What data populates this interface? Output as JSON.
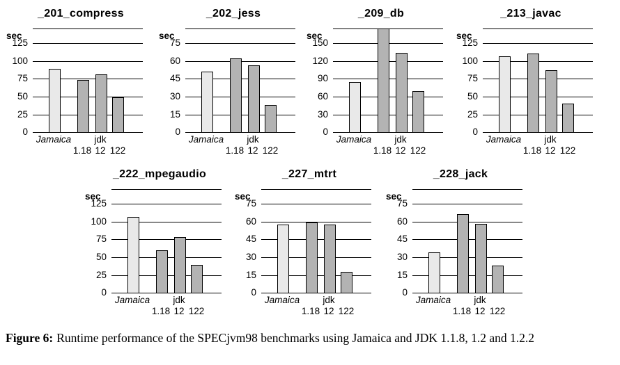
{
  "figure": {
    "caption_label": "Figure 6:",
    "caption_text": "Runtime performance of the SPECjvm98 benchmarks using Jamaica and JDK 1.1.8, 1.2 and 1.2.2"
  },
  "colors": {
    "background": "#ffffff",
    "jamaica_bar": "#e9e9e9",
    "jdk_bar": "#b3b3b3",
    "bar_border": "#000000",
    "grid_line": "#000000",
    "text": "#000000"
  },
  "x_axis": {
    "row1": [
      {
        "text": "Jamaica",
        "bar": 0,
        "italic": true
      },
      {
        "text": "jdk",
        "bar": 2,
        "italic": false
      }
    ],
    "row2": [
      {
        "text": "1.18",
        "bar": 1
      },
      {
        "text": "12",
        "bar": 2
      },
      {
        "text": "122",
        "bar": 3
      }
    ]
  },
  "chart_data": [
    {
      "type": "bar",
      "title": "_201_compress",
      "ylabel": "sec",
      "xlabel": "",
      "categories": [
        "Jamaica",
        "jdk 1.18",
        "jdk 12",
        "jdk 122"
      ],
      "values": [
        87,
        72,
        79,
        47
      ],
      "yticks": [
        0,
        25,
        50,
        75,
        100,
        125
      ],
      "ylim": [
        0,
        145
      ],
      "grid": true,
      "legend": false
    },
    {
      "type": "bar",
      "title": "_202_jess",
      "ylabel": "sec",
      "xlabel": "",
      "categories": [
        "Jamaica",
        "jdk 1.18",
        "jdk 12",
        "jdk 122"
      ],
      "values": [
        50,
        61,
        55,
        22
      ],
      "yticks": [
        0,
        15,
        30,
        45,
        60,
        75
      ],
      "ylim": [
        0,
        87
      ],
      "grid": true,
      "legend": false
    },
    {
      "type": "bar",
      "title": "_209_db",
      "ylabel": "sec",
      "xlabel": "",
      "categories": [
        "Jamaica",
        "jdk 1.18",
        "jdk 12",
        "jdk 122"
      ],
      "values": [
        82,
        172,
        131,
        67
      ],
      "yticks": [
        0,
        30,
        60,
        90,
        120,
        150
      ],
      "ylim": [
        0,
        174
      ],
      "grid": true,
      "legend": false
    },
    {
      "type": "bar",
      "title": "_213_javac",
      "ylabel": "sec",
      "xlabel": "",
      "categories": [
        "Jamaica",
        "jdk 1.18",
        "jdk 12",
        "jdk 122"
      ],
      "values": [
        104,
        108,
        85,
        39
      ],
      "yticks": [
        0,
        25,
        50,
        75,
        100,
        125
      ],
      "ylim": [
        0,
        145
      ],
      "grid": true,
      "legend": false
    },
    {
      "type": "bar",
      "title": "_222_mpegaudio",
      "ylabel": "sec",
      "xlabel": "",
      "categories": [
        "Jamaica",
        "jdk 1.18",
        "jdk 12",
        "jdk 122"
      ],
      "values": [
        104,
        58,
        76,
        38
      ],
      "yticks": [
        0,
        25,
        50,
        75,
        100,
        125
      ],
      "ylim": [
        0,
        145
      ],
      "grid": true,
      "legend": false
    },
    {
      "type": "bar",
      "title": "_227_mtrt",
      "ylabel": "sec",
      "xlabel": "",
      "categories": [
        "Jamaica",
        "jdk 1.18",
        "jdk 12",
        "jdk 122"
      ],
      "values": [
        56,
        58,
        56,
        17
      ],
      "yticks": [
        0,
        15,
        30,
        45,
        60,
        75
      ],
      "ylim": [
        0,
        87
      ],
      "grid": true,
      "legend": false
    },
    {
      "type": "bar",
      "title": "_228_jack",
      "ylabel": "sec",
      "xlabel": "",
      "categories": [
        "Jamaica",
        "jdk 1.18",
        "jdk 12",
        "jdk 122"
      ],
      "values": [
        33,
        65,
        57,
        22
      ],
      "yticks": [
        0,
        15,
        30,
        45,
        60,
        75
      ],
      "ylim": [
        0,
        87
      ],
      "grid": true,
      "legend": false
    }
  ]
}
